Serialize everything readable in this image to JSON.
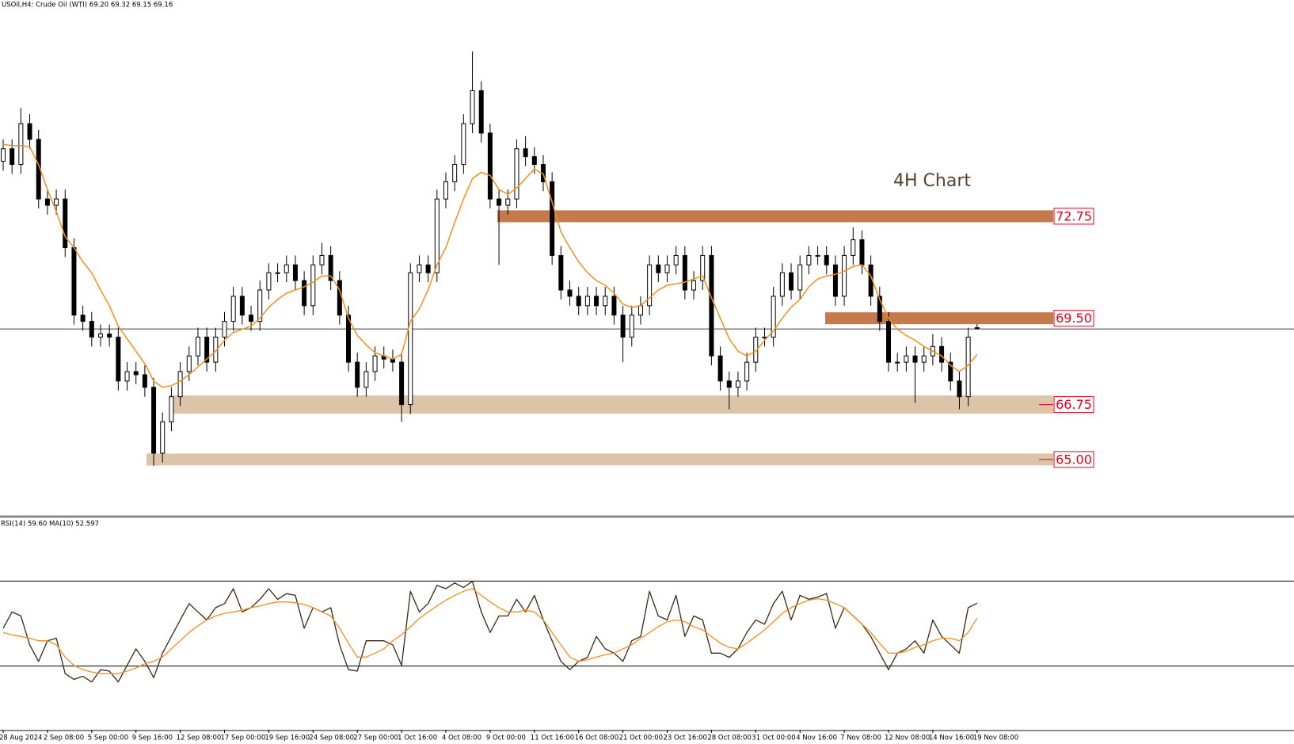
{
  "chart_data": [
    {
      "type": "candlestick",
      "title": "USOil,H4: Crude Oil (WTI)  69.20 69.32 69.15 69.16",
      "annotation": "4H Chart",
      "color": "#000000",
      "ylim": [
        63.18,
        79.64
      ],
      "open": [
        74.5,
        74.9,
        74.4,
        75.7,
        75.2,
        73.3,
        73.1,
        73.3,
        71.75,
        69.6,
        69.4,
        68.9,
        69.0,
        68.9,
        67.5,
        67.8,
        67.7,
        67.3,
        65.2,
        66.2,
        67.0,
        67.8,
        68.3,
        68.9,
        68.1,
        68.9,
        69.4,
        70.2,
        69.6,
        69.4,
        70.4,
        70.95,
        70.95,
        71.2,
        70.7,
        69.9,
        71.2,
        71.5,
        70.7,
        69.6,
        68.1,
        67.3,
        67.8,
        68.3,
        68.2,
        68.1,
        66.75,
        70.95,
        71.2,
        70.95,
        73.3,
        73.85,
        74.4,
        75.7,
        76.75,
        75.4,
        73.3,
        73.1,
        73.3,
        74.9,
        74.65,
        74.4,
        73.85,
        71.5,
        70.4,
        70.2,
        69.9,
        70.2,
        69.9,
        70.2,
        69.6,
        68.9,
        69.6,
        69.9,
        71.2,
        70.95,
        71.2,
        71.5,
        70.4,
        70.7,
        71.5,
        68.3,
        67.5,
        67.3,
        67.5,
        68.1,
        68.9,
        68.9,
        70.2,
        70.95,
        70.4,
        71.2,
        71.5,
        71.5,
        71.2,
        70.2,
        71.5,
        72.0,
        71.2,
        70.2,
        69.4,
        68.1,
        68.1,
        68.3,
        68.1,
        68.3,
        68.6,
        68.1,
        67.5,
        67.0,
        69.2
      ],
      "high": [
        75.2,
        75.2,
        76.2,
        76.0,
        75.5,
        73.6,
        73.6,
        73.6,
        72.05,
        69.9,
        69.7,
        69.3,
        69.3,
        69.2,
        68.1,
        68.1,
        68.0,
        67.6,
        66.5,
        67.3,
        68.1,
        68.6,
        69.2,
        69.2,
        69.2,
        69.7,
        70.5,
        70.5,
        69.9,
        70.7,
        71.25,
        71.25,
        71.5,
        71.5,
        71.0,
        71.5,
        71.9,
        71.8,
        71.0,
        69.9,
        68.4,
        68.1,
        68.6,
        68.6,
        68.5,
        68.4,
        71.25,
        71.5,
        71.5,
        73.6,
        74.15,
        74.7,
        76.0,
        78.0,
        77.05,
        75.7,
        73.6,
        73.6,
        75.2,
        75.3,
        74.95,
        74.7,
        74.15,
        71.8,
        70.7,
        70.5,
        70.5,
        70.5,
        70.5,
        70.5,
        69.9,
        69.9,
        70.2,
        71.5,
        71.5,
        71.5,
        71.8,
        71.8,
        71.0,
        71.8,
        71.8,
        68.6,
        67.8,
        67.8,
        68.4,
        69.2,
        69.2,
        70.5,
        71.25,
        71.25,
        71.5,
        71.8,
        71.8,
        71.8,
        71.5,
        71.8,
        72.4,
        72.3,
        71.5,
        70.5,
        69.7,
        68.4,
        68.6,
        68.6,
        68.6,
        69.0,
        68.9,
        68.4,
        67.8,
        69.2,
        69.32
      ],
      "low": [
        74.2,
        74.1,
        74.1,
        74.9,
        73.0,
        72.8,
        72.8,
        71.45,
        69.3,
        69.1,
        68.6,
        68.6,
        68.6,
        67.2,
        67.2,
        67.4,
        67.0,
        64.8,
        64.9,
        65.9,
        66.7,
        67.5,
        68.0,
        67.8,
        67.8,
        68.6,
        69.1,
        69.3,
        69.1,
        69.1,
        70.1,
        70.65,
        70.65,
        70.4,
        69.6,
        69.6,
        70.9,
        70.4,
        69.3,
        67.8,
        67.0,
        67.0,
        67.5,
        67.9,
        67.8,
        66.2,
        66.45,
        70.65,
        70.65,
        70.65,
        73.0,
        73.55,
        74.1,
        75.4,
        75.1,
        73.0,
        71.2,
        72.8,
        73.0,
        74.35,
        74.1,
        73.55,
        71.2,
        70.1,
        69.9,
        69.6,
        69.6,
        69.6,
        69.6,
        69.3,
        68.1,
        68.6,
        69.3,
        69.6,
        70.65,
        70.65,
        70.9,
        70.1,
        70.1,
        70.4,
        68.0,
        67.2,
        66.6,
        67.0,
        67.2,
        67.8,
        68.6,
        68.6,
        69.9,
        70.1,
        70.1,
        70.9,
        71.2,
        70.9,
        69.9,
        69.9,
        71.2,
        70.9,
        69.9,
        69.1,
        67.8,
        67.8,
        67.8,
        66.8,
        67.8,
        68.0,
        67.8,
        67.2,
        66.6,
        66.7,
        69.15
      ],
      "close": [
        74.9,
        74.4,
        75.7,
        75.2,
        73.3,
        73.1,
        73.3,
        71.75,
        69.6,
        69.4,
        68.9,
        69.0,
        68.9,
        67.5,
        67.8,
        67.7,
        67.3,
        65.2,
        66.2,
        67.0,
        67.8,
        68.3,
        68.9,
        68.1,
        68.9,
        69.4,
        70.2,
        69.6,
        69.4,
        70.4,
        70.95,
        70.95,
        71.2,
        70.7,
        69.9,
        71.2,
        71.5,
        70.7,
        69.6,
        68.1,
        67.3,
        67.8,
        68.3,
        68.2,
        68.1,
        66.75,
        70.95,
        71.2,
        70.95,
        73.3,
        73.85,
        74.4,
        75.7,
        76.75,
        75.4,
        73.3,
        73.1,
        73.3,
        74.9,
        74.65,
        74.4,
        73.85,
        71.5,
        70.4,
        70.2,
        69.9,
        70.2,
        69.9,
        70.2,
        69.6,
        68.9,
        69.6,
        69.9,
        71.2,
        70.95,
        71.2,
        71.5,
        70.4,
        70.7,
        71.5,
        68.3,
        67.5,
        67.3,
        67.5,
        68.1,
        68.9,
        68.9,
        70.2,
        70.95,
        70.4,
        71.2,
        71.5,
        71.5,
        71.2,
        70.2,
        71.5,
        72.0,
        71.2,
        70.2,
        69.4,
        68.1,
        68.1,
        68.3,
        68.1,
        68.3,
        68.6,
        68.1,
        67.5,
        67.0,
        68.9,
        69.16
      ],
      "ma": {
        "color": "#f0901e",
        "values": [
          75.04,
          75.0,
          75.0,
          74.96,
          74.4,
          73.6,
          72.9,
          72.1,
          71.75,
          71.3,
          70.95,
          70.4,
          69.9,
          69.25,
          68.85,
          68.45,
          68.05,
          67.5,
          67.3,
          67.35,
          67.5,
          67.7,
          67.95,
          68.2,
          68.45,
          68.8,
          69.05,
          69.15,
          69.25,
          69.5,
          69.85,
          70.1,
          70.3,
          70.4,
          70.5,
          70.65,
          70.85,
          70.85,
          70.4,
          69.5,
          68.95,
          68.65,
          68.4,
          68.3,
          68.2,
          68.35,
          69.4,
          69.8,
          70.4,
          71.2,
          71.75,
          72.55,
          73.3,
          73.95,
          74.15,
          74.05,
          73.6,
          73.45,
          73.65,
          73.95,
          74.25,
          74.1,
          73.2,
          72.25,
          71.75,
          71.3,
          70.95,
          70.7,
          70.55,
          70.3,
          69.95,
          69.85,
          69.9,
          70.15,
          70.4,
          70.55,
          70.6,
          70.65,
          70.75,
          70.85,
          70.15,
          69.5,
          68.85,
          68.45,
          68.3,
          68.45,
          68.8,
          69.1,
          69.5,
          69.85,
          70.1,
          70.5,
          70.75,
          70.85,
          70.9,
          71.0,
          71.15,
          71.2,
          70.85,
          70.1,
          69.5,
          69.15,
          68.95,
          68.8,
          68.6,
          68.45,
          68.3,
          68.0,
          67.8,
          68.0,
          68.35
        ]
      },
      "levels": [
        72.75,
        69.5,
        66.75,
        65
      ],
      "level_labels": [
        "72.75",
        "69.50",
        "66.75",
        "65.00"
      ],
      "level_colors": [
        "#c67a4b",
        "#c67a4b",
        "#dcc4a8",
        "#dcc4a8"
      ],
      "label_color": "#e3001b"
    },
    {
      "type": "line",
      "title": "RSI(14) 59.60 MA(10) 52.597",
      "ylim": [
        0,
        100
      ],
      "levels": [
        70,
        30
      ],
      "categories": [
        "28 Aug 2024",
        null,
        null,
        null,
        null,
        "2 Sep 08:00",
        null,
        null,
        null,
        null,
        "5 Sep 00:00",
        null,
        null,
        null,
        null,
        "9 Sep 16:00",
        null,
        null,
        null,
        null,
        "12 Sep 08:00",
        null,
        null,
        null,
        null,
        "17 Sep 00:00",
        null,
        null,
        null,
        null,
        "19 Sep 16:00",
        null,
        null,
        null,
        null,
        "24 Sep 08:00",
        null,
        null,
        null,
        null,
        "27 Sep 00:00",
        null,
        null,
        null,
        null,
        "1 Oct 16:00",
        null,
        null,
        null,
        null,
        "4 Oct 08:00",
        null,
        null,
        null,
        null,
        "9 Oct 00:00",
        null,
        null,
        null,
        null,
        "11 Oct 16:00",
        null,
        null,
        null,
        null,
        "16 Oct 08:00",
        null,
        null,
        null,
        null,
        "21 Oct 00:00",
        null,
        null,
        null,
        null,
        "23 Oct 16:00",
        null,
        null,
        null,
        null,
        "28 Oct 08:00",
        null,
        null,
        null,
        null,
        "31 Oct 00:00",
        null,
        null,
        null,
        null,
        "4 Nov 16:00",
        null,
        null,
        null,
        null,
        "7 Nov 08:00",
        null,
        null,
        null,
        null,
        "12 Nov 08:00",
        null,
        null,
        null,
        null,
        "14 Nov 16:00",
        null,
        null,
        null,
        null,
        "19 Nov 08:00"
      ],
      "series": [
        {
          "color": "#3d2614",
          "values": [
            47.8,
            55.5,
            53.6,
            40.0,
            32.2,
            41.9,
            43.1,
            26.4,
            23.7,
            25.2,
            22.5,
            28.3,
            27.6,
            22.5,
            30.3,
            38.1,
            32.2,
            24.5,
            36.1,
            43.9,
            51.7,
            59.4,
            55.5,
            51.7,
            57.5,
            59.4,
            66.4,
            55.5,
            57.5,
            61.4,
            66.4,
            61.4,
            64.1,
            63.3,
            47.8,
            57.5,
            55.5,
            57.5,
            40.0,
            28.3,
            27.6,
            41.9,
            41.9,
            41.9,
            40.0,
            30.3,
            65.2,
            55.5,
            59.4,
            68.0,
            66.4,
            69.1,
            67.0,
            69.9,
            55.5,
            45.8,
            53.6,
            53.6,
            61.4,
            55.5,
            63.3,
            51.7,
            41.9,
            32.2,
            28.3,
            32.2,
            34.1,
            43.9,
            38.1,
            36.1,
            32.2,
            41.9,
            43.9,
            65.2,
            53.6,
            51.7,
            63.3,
            43.9,
            53.6,
            51.7,
            36.1,
            36.1,
            34.1,
            38.1,
            45.8,
            51.7,
            49.7,
            59.4,
            65.2,
            51.7,
            63.3,
            61.4,
            62.5,
            64.1,
            47.8,
            57.5,
            53.6,
            49.7,
            43.9,
            36.1,
            28.3,
            36.1,
            38.1,
            41.9,
            36.1,
            51.7,
            43.9,
            40.0,
            36.1,
            57.5,
            59.6
          ]
        },
        {
          "color": "#f0901e",
          "values": [
            45.8,
            44.7,
            43.9,
            43.1,
            41.9,
            41.9,
            40.0,
            34.2,
            30.3,
            28.3,
            27.2,
            26.4,
            26.4,
            26.4,
            27.6,
            29.1,
            31.1,
            32.2,
            34.2,
            38.1,
            41.9,
            45.8,
            48.9,
            51.7,
            53.6,
            54.8,
            55.5,
            56.3,
            57.5,
            58.3,
            59.4,
            60.2,
            60.2,
            59.8,
            59.0,
            57.5,
            55.5,
            53.6,
            47.8,
            40.8,
            34.2,
            34.2,
            36.1,
            38.1,
            41.9,
            44.7,
            48.5,
            52.4,
            55.5,
            58.3,
            61.0,
            63.3,
            65.2,
            66.4,
            63.3,
            60.2,
            57.5,
            55.5,
            55.5,
            56.3,
            55.5,
            51.7,
            45.8,
            40.0,
            34.2,
            32.2,
            33.0,
            34.2,
            35.3,
            36.1,
            38.1,
            40.0,
            43.1,
            45.8,
            48.5,
            50.9,
            51.7,
            50.9,
            48.5,
            47.0,
            43.9,
            40.8,
            38.8,
            38.1,
            40.8,
            43.9,
            47.0,
            50.9,
            54.8,
            57.5,
            59.4,
            61.0,
            61.7,
            61.0,
            59.4,
            57.5,
            53.6,
            49.7,
            45.8,
            40.8,
            36.1,
            36.1,
            36.9,
            38.8,
            40.0,
            41.9,
            43.1,
            43.1,
            41.9,
            45.8,
            52.6
          ]
        }
      ]
    }
  ]
}
